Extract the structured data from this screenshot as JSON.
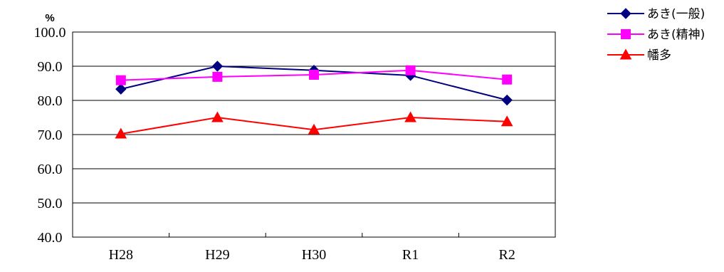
{
  "chart_data": {
    "type": "line",
    "unit_label": "%",
    "categories": [
      "H28",
      "H29",
      "H30",
      "R1",
      "R2"
    ],
    "ylim": [
      40,
      100
    ],
    "yticks": [
      "40.0",
      "50.0",
      "60.0",
      "70.0",
      "80.0",
      "90.0",
      "100.0"
    ],
    "grid": true,
    "legend_position": "top-right",
    "series": [
      {
        "name": "あき(一般)",
        "values": [
          83.3,
          90.0,
          88.8,
          87.3,
          80.1
        ],
        "color": "#000080",
        "marker": "diamond"
      },
      {
        "name": "あき(精神)",
        "values": [
          85.9,
          86.9,
          87.5,
          88.8,
          86.1
        ],
        "color": "#ff00ff",
        "marker": "square"
      },
      {
        "name": "幡多",
        "values": [
          70.2,
          75.0,
          71.4,
          75.0,
          73.8
        ],
        "color": "#ff0000",
        "marker": "triangle"
      }
    ]
  }
}
